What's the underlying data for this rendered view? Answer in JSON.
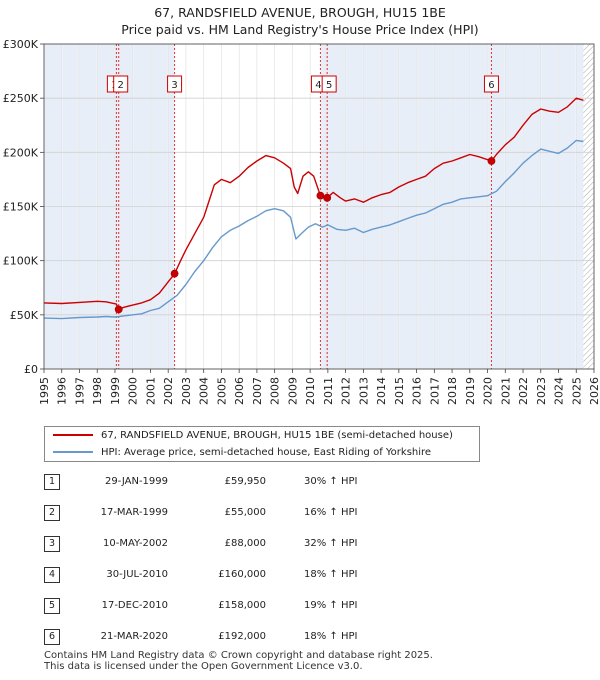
{
  "chart_data": {
    "type": "line",
    "title": "67, RANDSFIELD AVENUE, BROUGH, HU15 1BE",
    "subtitle": "Price paid vs. HM Land Registry's House Price Index (HPI)",
    "xlabel": "",
    "ylabel": "",
    "xlim": [
      1995,
      2026
    ],
    "ylim": [
      0,
      300000
    ],
    "x_ticks": [
      "1995",
      "1996",
      "1997",
      "1998",
      "1999",
      "2000",
      "2001",
      "2002",
      "2003",
      "2004",
      "2005",
      "2006",
      "2007",
      "2008",
      "2009",
      "2010",
      "2011",
      "2012",
      "2013",
      "2014",
      "2015",
      "2016",
      "2017",
      "2018",
      "2019",
      "2020",
      "2021",
      "2022",
      "2023",
      "2024",
      "2025",
      "2026"
    ],
    "y_ticks": [
      {
        "value": 0,
        "label": "£0"
      },
      {
        "value": 50000,
        "label": "£50K"
      },
      {
        "value": 100000,
        "label": "£100K"
      },
      {
        "value": 150000,
        "label": "£150K"
      },
      {
        "value": 200000,
        "label": "£200K"
      },
      {
        "value": 250000,
        "label": "£250K"
      },
      {
        "value": 300000,
        "label": "£300K"
      }
    ],
    "grid": true,
    "series": [
      {
        "name": "67, RANDSFIELD AVENUE, BROUGH, HU15 1BE (semi-detached house)",
        "color": "#cc0000",
        "points": [
          [
            1995,
            61000
          ],
          [
            1996,
            60500
          ],
          [
            1997,
            61500
          ],
          [
            1998,
            62500
          ],
          [
            1998.5,
            62000
          ],
          [
            1999.08,
            59950
          ],
          [
            1999.21,
            55000
          ],
          [
            1999.5,
            57000
          ],
          [
            2000,
            59000
          ],
          [
            2000.5,
            61000
          ],
          [
            2001,
            64000
          ],
          [
            2001.5,
            70000
          ],
          [
            2002.36,
            88000
          ],
          [
            2002.7,
            100000
          ],
          [
            2003,
            110000
          ],
          [
            2003.5,
            125000
          ],
          [
            2004,
            140000
          ],
          [
            2004.3,
            155000
          ],
          [
            2004.6,
            170000
          ],
          [
            2005,
            175000
          ],
          [
            2005.5,
            172000
          ],
          [
            2006,
            178000
          ],
          [
            2006.5,
            186000
          ],
          [
            2007,
            192000
          ],
          [
            2007.5,
            197000
          ],
          [
            2008,
            195000
          ],
          [
            2008.5,
            190000
          ],
          [
            2008.9,
            185000
          ],
          [
            2009.1,
            168000
          ],
          [
            2009.3,
            162000
          ],
          [
            2009.6,
            178000
          ],
          [
            2009.9,
            182000
          ],
          [
            2010.2,
            178000
          ],
          [
            2010.58,
            160000
          ],
          [
            2010.96,
            158000
          ],
          [
            2011.3,
            163000
          ],
          [
            2011.7,
            158000
          ],
          [
            2012,
            155000
          ],
          [
            2012.5,
            157000
          ],
          [
            2013,
            154000
          ],
          [
            2013.5,
            158000
          ],
          [
            2014,
            161000
          ],
          [
            2014.5,
            163000
          ],
          [
            2015,
            168000
          ],
          [
            2015.5,
            172000
          ],
          [
            2016,
            175000
          ],
          [
            2016.5,
            178000
          ],
          [
            2017,
            185000
          ],
          [
            2017.5,
            190000
          ],
          [
            2018,
            192000
          ],
          [
            2018.5,
            195000
          ],
          [
            2019,
            198000
          ],
          [
            2019.5,
            196000
          ],
          [
            2020.22,
            192000
          ],
          [
            2020.5,
            198000
          ],
          [
            2021,
            207000
          ],
          [
            2021.5,
            214000
          ],
          [
            2022,
            225000
          ],
          [
            2022.5,
            235000
          ],
          [
            2023,
            240000
          ],
          [
            2023.5,
            238000
          ],
          [
            2024,
            237000
          ],
          [
            2024.5,
            242000
          ],
          [
            2025,
            250000
          ],
          [
            2025.4,
            248000
          ]
        ]
      },
      {
        "name": "HPI: Average price, semi-detached house, East Riding of Yorkshire",
        "color": "#6699cc",
        "points": [
          [
            1995,
            47000
          ],
          [
            1996,
            46500
          ],
          [
            1997,
            47500
          ],
          [
            1998,
            48000
          ],
          [
            1998.5,
            48500
          ],
          [
            1999,
            48000
          ],
          [
            1999.5,
            49000
          ],
          [
            2000,
            50000
          ],
          [
            2000.5,
            51000
          ],
          [
            2001,
            54000
          ],
          [
            2001.5,
            56000
          ],
          [
            2002,
            62000
          ],
          [
            2002.5,
            68000
          ],
          [
            2003,
            78000
          ],
          [
            2003.5,
            90000
          ],
          [
            2004,
            100000
          ],
          [
            2004.5,
            112000
          ],
          [
            2005,
            122000
          ],
          [
            2005.5,
            128000
          ],
          [
            2006,
            132000
          ],
          [
            2006.5,
            137000
          ],
          [
            2007,
            141000
          ],
          [
            2007.5,
            146000
          ],
          [
            2008,
            148000
          ],
          [
            2008.5,
            146000
          ],
          [
            2008.9,
            140000
          ],
          [
            2009.2,
            120000
          ],
          [
            2009.5,
            125000
          ],
          [
            2009.9,
            131000
          ],
          [
            2010.3,
            134000
          ],
          [
            2010.7,
            131000
          ],
          [
            2011,
            133000
          ],
          [
            2011.5,
            129000
          ],
          [
            2012,
            128000
          ],
          [
            2012.5,
            130000
          ],
          [
            2013,
            126000
          ],
          [
            2013.5,
            129000
          ],
          [
            2014,
            131000
          ],
          [
            2014.5,
            133000
          ],
          [
            2015,
            136000
          ],
          [
            2015.5,
            139000
          ],
          [
            2016,
            142000
          ],
          [
            2016.5,
            144000
          ],
          [
            2017,
            148000
          ],
          [
            2017.5,
            152000
          ],
          [
            2018,
            154000
          ],
          [
            2018.5,
            157000
          ],
          [
            2019,
            158000
          ],
          [
            2019.5,
            159000
          ],
          [
            2020,
            160000
          ],
          [
            2020.5,
            164000
          ],
          [
            2021,
            173000
          ],
          [
            2021.5,
            181000
          ],
          [
            2022,
            190000
          ],
          [
            2022.5,
            197000
          ],
          [
            2023,
            203000
          ],
          [
            2023.5,
            201000
          ],
          [
            2024,
            199000
          ],
          [
            2024.5,
            204000
          ],
          [
            2025,
            211000
          ],
          [
            2025.4,
            210000
          ]
        ]
      }
    ],
    "transactions": [
      {
        "label": "1",
        "x": 1999.08,
        "price": 59950,
        "marker": false
      },
      {
        "label": "2",
        "x": 1999.21,
        "price": 55000,
        "marker": true
      },
      {
        "label": "3",
        "x": 2002.36,
        "price": 88000,
        "marker": true
      },
      {
        "label": "4",
        "x": 2010.58,
        "price": 160000,
        "marker": true
      },
      {
        "label": "5",
        "x": 2010.96,
        "price": 158000,
        "marker": true
      },
      {
        "label": "6",
        "x": 2020.22,
        "price": 192000,
        "marker": true
      }
    ],
    "shaded_ranges": [
      [
        1995,
        2002.36
      ],
      [
        2010.58,
        2025.4
      ]
    ],
    "hatched_from": 2025.4
  },
  "legend": {
    "property_label": "67, RANDSFIELD AVENUE, BROUGH, HU15 1BE (semi-detached house)",
    "hpi_label": "HPI: Average price, semi-detached house, East Riding of Yorkshire"
  },
  "table": {
    "rows": [
      {
        "num": "1",
        "date": "29-JAN-1999",
        "price": "£59,950",
        "hpi": "30% ↑ HPI"
      },
      {
        "num": "2",
        "date": "17-MAR-1999",
        "price": "£55,000",
        "hpi": "16% ↑ HPI"
      },
      {
        "num": "3",
        "date": "10-MAY-2002",
        "price": "£88,000",
        "hpi": "32% ↑ HPI"
      },
      {
        "num": "4",
        "date": "30-JUL-2010",
        "price": "£160,000",
        "hpi": "18% ↑ HPI"
      },
      {
        "num": "5",
        "date": "17-DEC-2010",
        "price": "£158,000",
        "hpi": "19% ↑ HPI"
      },
      {
        "num": "6",
        "date": "21-MAR-2020",
        "price": "£192,000",
        "hpi": "18% ↑ HPI"
      }
    ]
  },
  "footer": {
    "line1": "Contains HM Land Registry data © Crown copyright and database right 2025.",
    "line2": "This data is licensed under the Open Government Licence v3.0."
  }
}
